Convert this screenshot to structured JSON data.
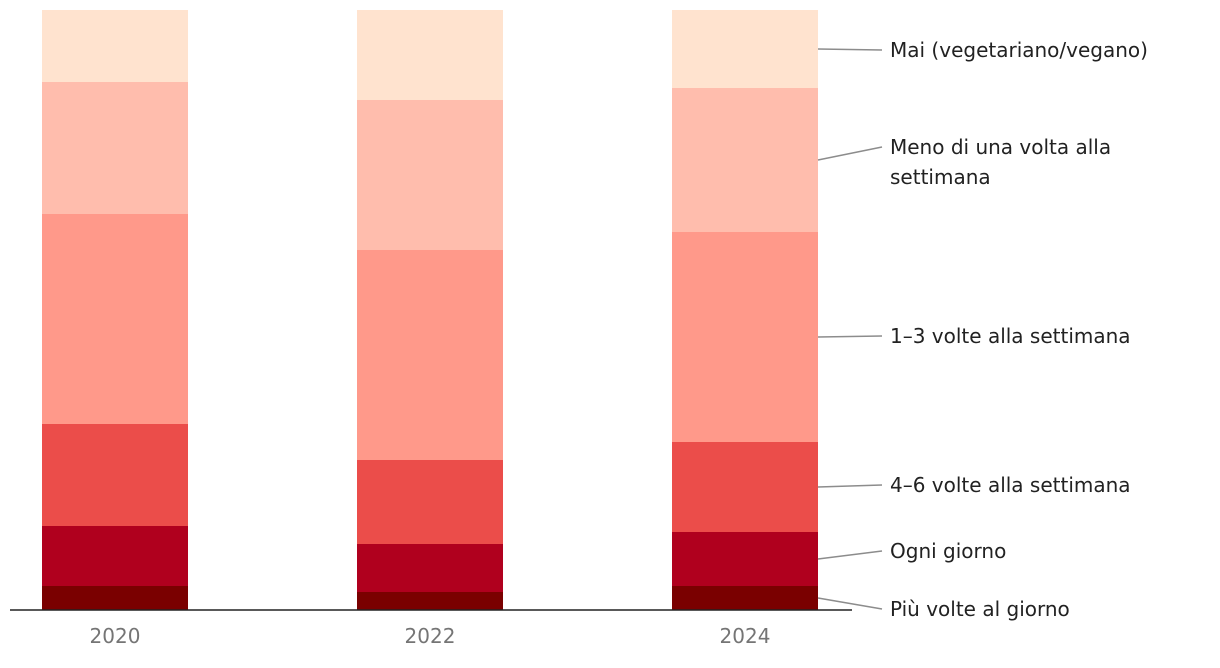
{
  "chart_data": {
    "type": "bar",
    "stacked": true,
    "normalized": true,
    "categories": [
      "2020",
      "2022",
      "2024"
    ],
    "series": [
      {
        "name": "Più volte al giorno",
        "color": "#7a0000",
        "values": [
          4,
          3,
          4
        ]
      },
      {
        "name": "Ogni giorno",
        "color": "#b0001e",
        "values": [
          10,
          8,
          9
        ]
      },
      {
        "name": "4–6 volte alla settimana",
        "color": "#eb4d4a",
        "values": [
          17,
          14,
          15
        ]
      },
      {
        "name": "1–3 volte alla settimana",
        "color": "#ff998a",
        "values": [
          35,
          35,
          35
        ]
      },
      {
        "name": "Meno di una volta alla settimana",
        "color": "#ffbdad",
        "values": [
          22,
          25,
          24
        ]
      },
      {
        "name": "Mai (vegetariano/vegano)",
        "color": "#ffe3cf",
        "values": [
          12,
          15,
          13
        ]
      }
    ],
    "legend": {
      "placement": "right",
      "labels": [
        [
          "Mai (vegetariano/vegano)"
        ],
        [
          "Meno di una volta alla",
          "settimana"
        ],
        [
          "1–3 volte alla settimana"
        ],
        [
          "4–6 volte alla settimana"
        ],
        [
          "Ogni giorno"
        ],
        [
          "Più volte al giorno"
        ]
      ]
    },
    "ylim": [
      0,
      100
    ],
    "grid": false,
    "title": "",
    "xlabel": "",
    "ylabel": ""
  }
}
